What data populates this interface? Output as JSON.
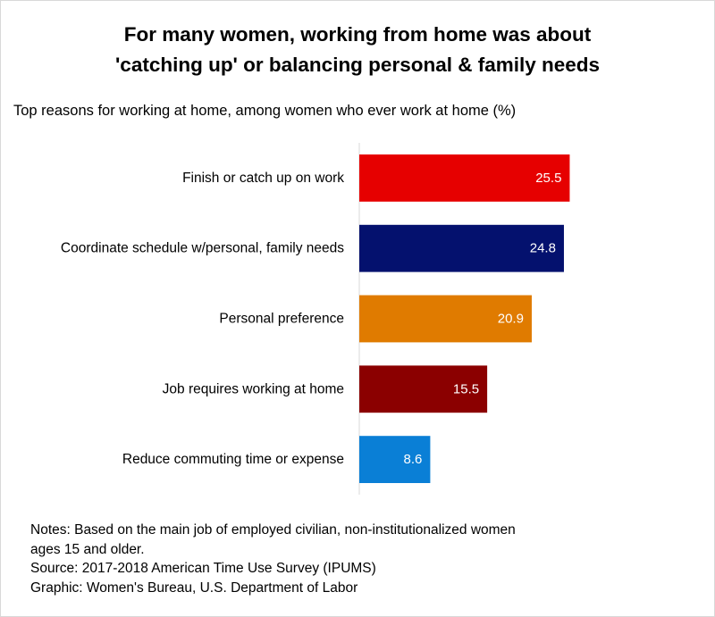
{
  "title_lines": [
    "For many women, working from home was about",
    "'catching up' or balancing personal & family needs"
  ],
  "subtitle": "Top reasons for working at home, among women who ever work at home (%)",
  "chart_data": {
    "type": "bar",
    "orientation": "horizontal",
    "categories": [
      "Finish or catch up on work",
      "Coordinate schedule w/personal, family needs",
      "Personal preference",
      "Job requires working at home",
      "Reduce commuting time or expense"
    ],
    "values": [
      25.5,
      24.8,
      20.9,
      15.5,
      8.6
    ],
    "value_labels": [
      "25.5",
      "24.8",
      "20.9",
      "15.5",
      "8.6"
    ],
    "colors": [
      "#e60000",
      "#04116e",
      "#e07b00",
      "#8b0000",
      "#0a7fd6"
    ],
    "xlim": [
      0,
      43
    ],
    "grid": false,
    "legend": "none"
  },
  "notes": {
    "line1": "Notes: Based on the main job of employed civilian, non-institutionalized women\nages 15 and older.",
    "source": "Source: 2017-2018 American Time Use Survey (IPUMS)",
    "graphic": "Graphic: Women's Bureau, U.S. Department of Labor"
  }
}
